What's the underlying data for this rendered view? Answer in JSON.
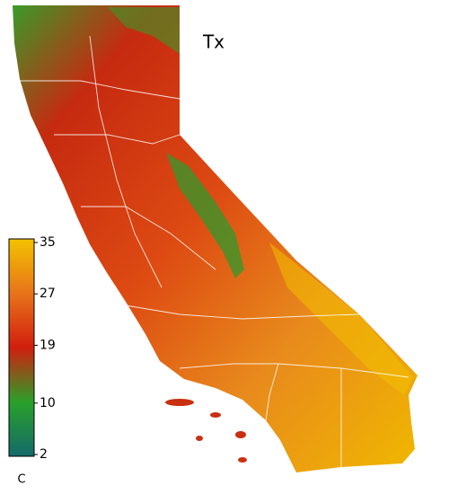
{
  "map": {
    "title": "Tx",
    "colorbar": {
      "label": "C",
      "lim": [
        2,
        35
      ],
      "ticks": [
        35,
        27,
        19,
        10,
        2
      ],
      "colors": [
        "#136a6a",
        "#2aa02a",
        "#d21e0e",
        "#e8741a",
        "#f2c200"
      ]
    }
  }
}
